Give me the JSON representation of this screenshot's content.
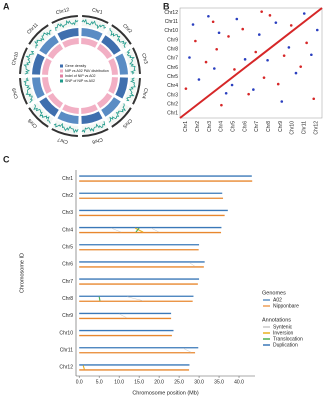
{
  "chart_data": [
    {
      "type": "circos",
      "panel": "A",
      "categories": [
        "Chr1",
        "Chr2",
        "Chr3",
        "Chr4",
        "Chr5",
        "Chr6",
        "Chr7",
        "Chr8",
        "Chr9",
        "Chr10",
        "Chr11",
        "Chr12"
      ],
      "legend": [
        "Gene density",
        "NIP vs A02 PAV distribution",
        "Indel of NIP vs A02",
        "SNP of NIP vs A02"
      ]
    },
    {
      "type": "dotplot",
      "panel": "B",
      "categories": [
        "Chr1",
        "Chr2",
        "Chr3",
        "Chr4",
        "Chr5",
        "Chr6",
        "Chr7",
        "Chr8",
        "Chr9",
        "Chr10",
        "Chr11",
        "Chr12"
      ],
      "xlim": [
        0,
        12
      ],
      "ylim": [
        0,
        12
      ],
      "series": [
        {
          "color": "#d62728",
          "x": [
            0.5,
            1.3,
            2.2,
            2.8,
            3.5,
            4.1,
            4.6,
            5.3,
            5.8,
            6.4,
            7.1,
            7.6,
            8.3,
            8.8,
            9.4,
            10.2,
            10.7,
            11.3,
            6.9,
            3.1
          ],
          "values": [
            3.2,
            8.4,
            6.1,
            10.5,
            1.4,
            8.9,
            5.3,
            9.7,
            2.6,
            7.2,
            4.4,
            11.2,
            3.7,
            6.8,
            10.1,
            5.6,
            8.2,
            2.1,
            11.6,
            7.5
          ]
        },
        {
          "color": "#2a3fbf",
          "x": [
            0.8,
            1.6,
            2.4,
            3.3,
            3.9,
            4.8,
            5.5,
            6.2,
            6.7,
            7.4,
            8.1,
            8.6,
            9.2,
            9.8,
            10.5,
            11.1,
            11.6,
            2.9,
            1.1,
            4.4
          ],
          "values": [
            6.6,
            4.2,
            11.1,
            9.3,
            2.7,
            10.8,
            6.4,
            3.1,
            9.1,
            6.3,
            10.4,
            1.8,
            7.7,
            4.9,
            11.4,
            6.9,
            9.6,
            5.4,
            10.2,
            3.6
          ]
        },
        {
          "type": "line",
          "color": "#d62728",
          "x": [
            0,
            12
          ],
          "values": [
            0,
            12
          ]
        }
      ]
    },
    {
      "type": "chromosome",
      "panel": "C",
      "categories": [
        "Chr1",
        "Chr2",
        "Chr3",
        "Chr4",
        "Chr5",
        "Chr6",
        "Chr7",
        "Chr8",
        "Chr9",
        "Chr10",
        "Chr11",
        "Chr12"
      ],
      "xlabel": "Chromosome position (Mb)",
      "ylabel": "Chromosome ID",
      "xlim": [
        -0.8,
        44
      ],
      "xticks": [
        {
          "value": 0,
          "label": "0.0"
        },
        {
          "value": 5,
          "label": "5.0"
        },
        {
          "value": 10,
          "label": "10.0"
        },
        {
          "value": 15,
          "label": "15.0"
        },
        {
          "value": 20,
          "label": "20.0"
        },
        {
          "value": 25,
          "label": "25.0"
        },
        {
          "value": 30,
          "label": "30.0"
        },
        {
          "value": 35,
          "label": "35.0"
        },
        {
          "value": 40,
          "label": "40.0"
        }
      ],
      "legend_title": "Genomes",
      "series": [
        {
          "name": "A02",
          "color": "#3a78b8",
          "values": [
            43.2,
            35.8,
            37.2,
            35.6,
            30.0,
            31.4,
            30.0,
            28.6,
            23.0,
            23.6,
            29.8,
            27.6
          ]
        },
        {
          "name": "Nipponbare",
          "color": "#e8872e",
          "values": [
            43.3,
            36.0,
            36.4,
            35.5,
            29.9,
            31.2,
            29.7,
            28.4,
            23.0,
            23.2,
            29.0,
            27.5
          ]
        }
      ],
      "annotations": {
        "title": "Annotations",
        "names": [
          "Syntenic",
          "Inversion",
          "Translocation",
          "Duplication"
        ],
        "colors": [
          "#c8c8c8",
          "#e8b020",
          "#4caf50",
          "#3a78b8"
        ],
        "items": [
          {
            "kind": 0,
            "chr": 3,
            "start": 8.0,
            "end": 10.5
          },
          {
            "kind": 0,
            "chr": 3,
            "start": 18.0,
            "end": 20.0
          },
          {
            "kind": 1,
            "chr": 3,
            "start": 14.0,
            "end": 16.0
          },
          {
            "kind": 2,
            "chr": 3,
            "start": 15.0,
            "end": 14.2
          },
          {
            "kind": 0,
            "chr": 5,
            "start": 27.5,
            "end": 29.0
          },
          {
            "kind": 2,
            "chr": 7,
            "start": 5.0,
            "end": 5.2
          },
          {
            "kind": 0,
            "chr": 7,
            "start": 12.0,
            "end": 16.0
          },
          {
            "kind": 0,
            "chr": 8,
            "start": 10.0,
            "end": 12.0
          },
          {
            "kind": 0,
            "chr": 10,
            "start": 26.0,
            "end": 28.0
          },
          {
            "kind": 1,
            "chr": 11,
            "start": 1.0,
            "end": 1.3
          }
        ]
      }
    }
  ]
}
